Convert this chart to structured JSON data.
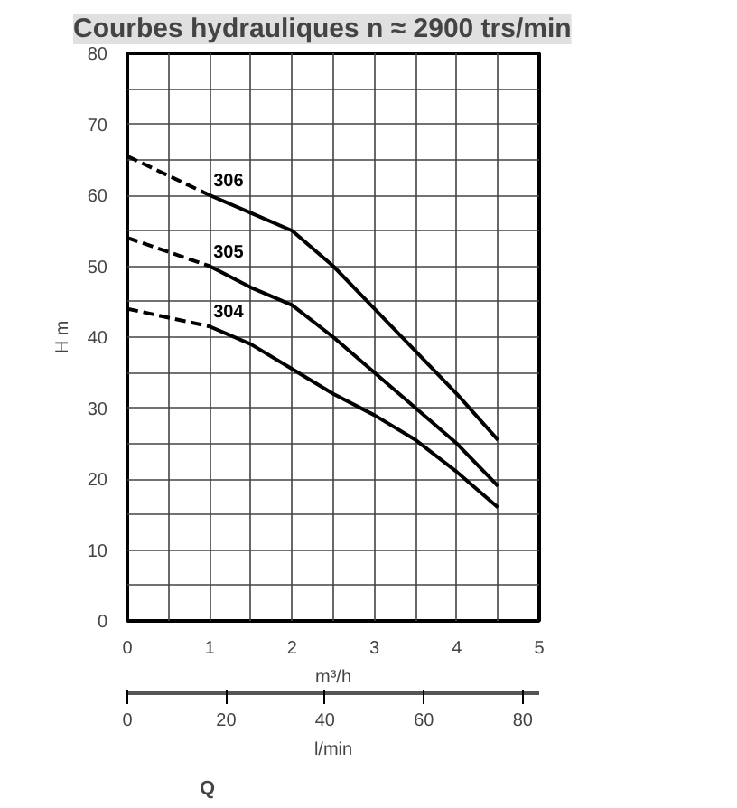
{
  "chart_data": {
    "type": "line",
    "title": "Courbes hydrauliques n ≈ 2900 trs/min",
    "xlabel": "m³/h",
    "x2label": "l/min",
    "ylabel": "H m",
    "annotations": [
      "Q"
    ],
    "xlim": [
      0,
      5
    ],
    "xticks": [
      0,
      {
        "value": 0.5,
        "label": null
      },
      1,
      {
        "value": 1.5,
        "label": null
      },
      2,
      {
        "value": 2.5,
        "label": null
      },
      3,
      {
        "value": 3.5,
        "label": null
      },
      4,
      {
        "value": 4.5,
        "label": null
      },
      5
    ],
    "x2lim": [
      0,
      83.33
    ],
    "x2ticks": [
      0,
      20,
      40,
      60,
      80
    ],
    "ylim": [
      0,
      80
    ],
    "yticks": [
      0,
      {
        "value": 5,
        "label": null
      },
      10,
      {
        "value": 15,
        "label": null
      },
      20,
      {
        "value": 25,
        "label": null
      },
      30,
      {
        "value": 35,
        "label": null
      },
      40,
      {
        "value": 45,
        "label": null
      },
      50,
      {
        "value": 55,
        "label": null
      },
      60,
      {
        "value": 65,
        "label": null
      },
      70,
      {
        "value": 75,
        "label": null
      },
      80
    ],
    "grid": true,
    "marker": "none",
    "series": [
      {
        "name": "306",
        "color": "#000000",
        "line_style": "solid",
        "x": [
          1,
          1.5,
          2,
          2.5,
          3,
          3.5,
          4,
          4.5
        ],
        "values": [
          60,
          57.5,
          55,
          50,
          44,
          38,
          32,
          25.5
        ]
      },
      {
        "name": "305",
        "color": "#000000",
        "line_style": "solid",
        "x": [
          1,
          1.5,
          2,
          2.5,
          3,
          3.5,
          4,
          4.5
        ],
        "values": [
          50,
          47,
          44.5,
          40,
          35,
          30,
          25,
          19
        ]
      },
      {
        "name": "304",
        "color": "#000000",
        "line_style": "solid",
        "x": [
          1,
          1.5,
          2,
          2.5,
          3,
          3.5,
          4,
          4.5
        ],
        "values": [
          41.5,
          39,
          35.5,
          32,
          29,
          25.5,
          21,
          16
        ]
      },
      {
        "color": "#000000",
        "line_style": "dashed",
        "x": [
          0,
          1
        ],
        "values": [
          65.5,
          60
        ]
      },
      {
        "color": "#000000",
        "line_style": "dashed",
        "x": [
          0,
          1
        ],
        "values": [
          54,
          50
        ]
      },
      {
        "color": "#000000",
        "line_style": "dashed",
        "x": [
          0,
          1
        ],
        "values": [
          44,
          41.5
        ]
      }
    ]
  }
}
